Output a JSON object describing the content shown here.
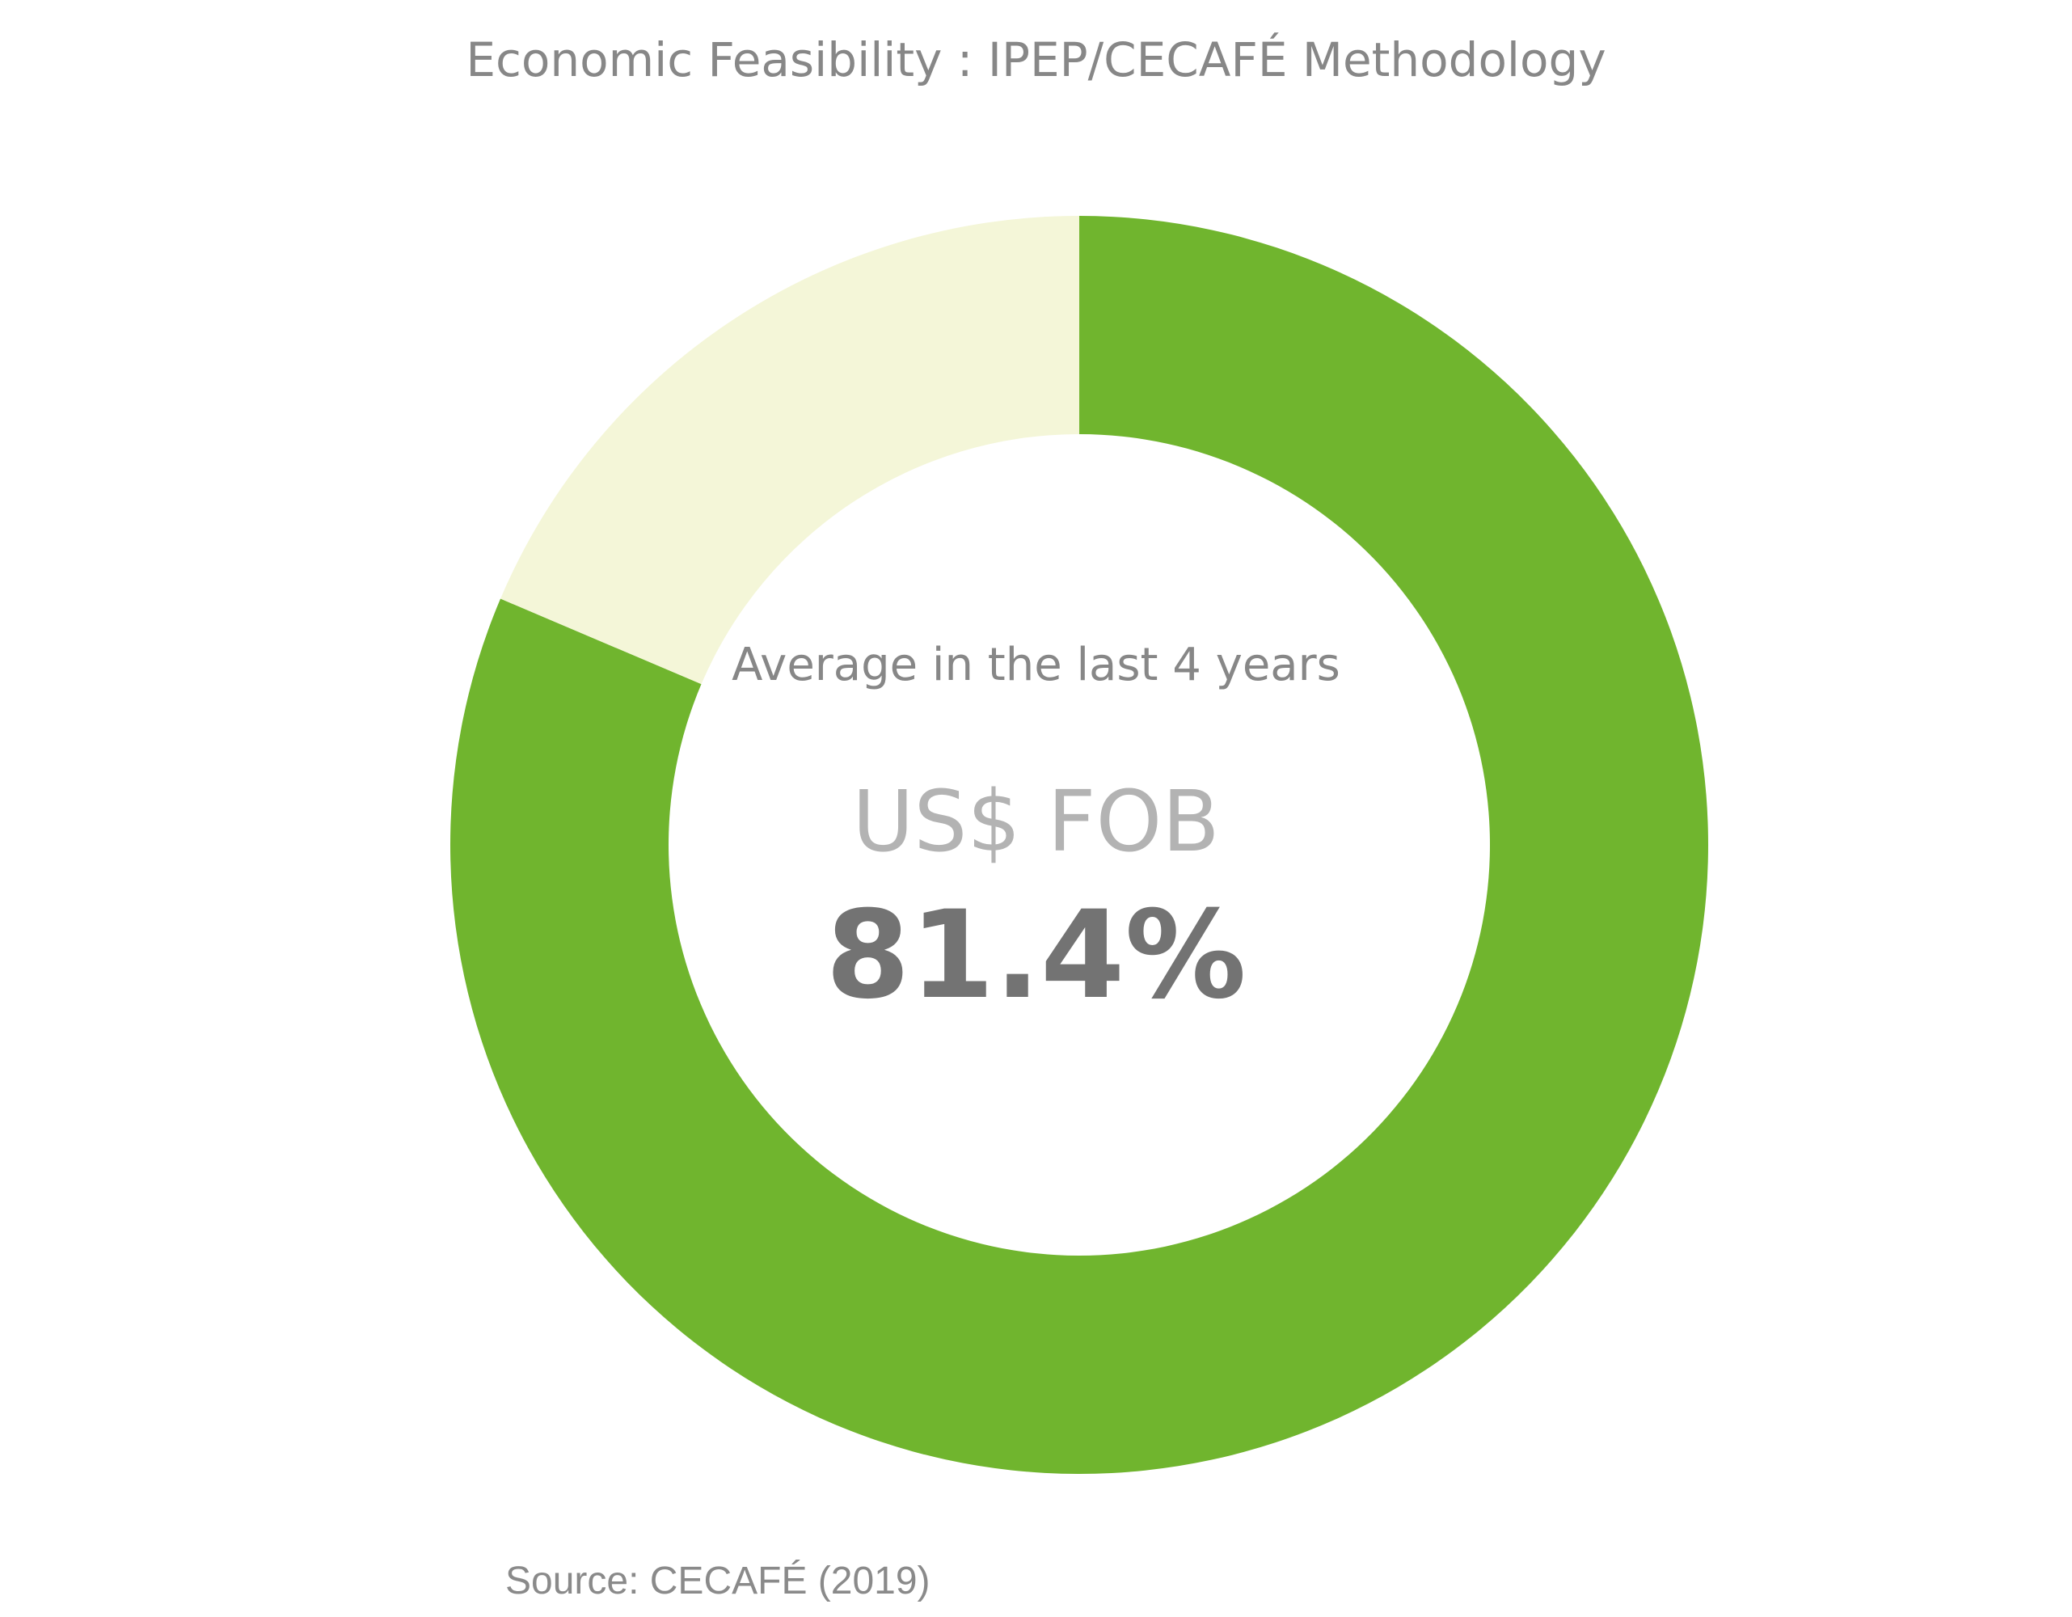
{
  "chart_data": {
    "type": "pie",
    "title": "Economic Feasibility : IPEP/CECAFÉ Methodology",
    "center_text": {
      "subtitle": "Average in the last 4 years",
      "unit": "US$ FOB",
      "value": "81.4%"
    },
    "slices": [
      {
        "value": 81.4,
        "color": "#70b52e"
      },
      {
        "value": 18.6,
        "color": "#f4f6d8"
      }
    ],
    "source": "Source: CECAFÉ (2019)"
  }
}
